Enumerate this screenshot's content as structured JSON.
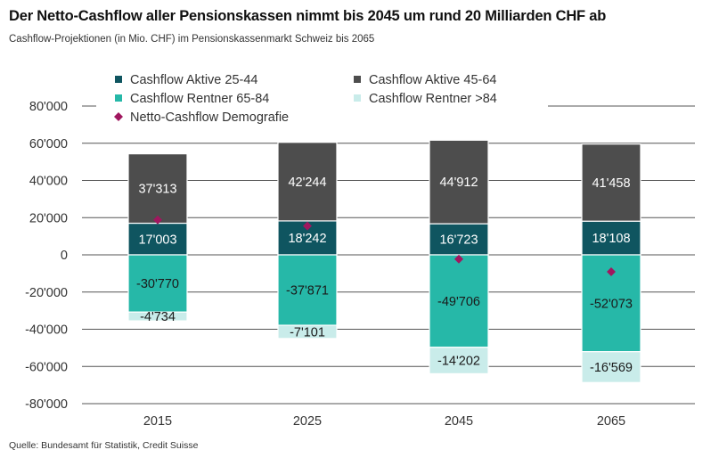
{
  "title": "Der Netto-Cashflow aller Pensionskassen nimmt bis 2045 um rund 20 Milliarden CHF ab",
  "subtitle": "Cashflow-Projektionen (in Mio. CHF) im Pensionskassenmarkt Schweiz bis 2065",
  "source": "Quelle: Bundesamt für Statistik, Credit Suisse",
  "chart_data": {
    "type": "bar",
    "stacked": true,
    "categories": [
      "2015",
      "2025",
      "2045",
      "2065"
    ],
    "ylim": [
      -80000,
      80000
    ],
    "yticks": [
      80000,
      60000,
      40000,
      20000,
      0,
      -20000,
      -40000,
      -60000,
      -80000
    ],
    "ytick_labels": [
      "80'000",
      "60'000",
      "40'000",
      "20'000",
      "0",
      "-20'000",
      "-40'000",
      "-60'000",
      "-80'000"
    ],
    "grid": true,
    "legend_position": "top-left",
    "series": [
      {
        "name": "Cashflow Aktive 25-44",
        "color": "#0f5560",
        "text_color": "#ffffff",
        "values": [
          17003,
          18242,
          16723,
          18108
        ],
        "labels": [
          "17'003",
          "18'242",
          "16'723",
          "18'108"
        ]
      },
      {
        "name": "Cashflow Aktive 45-64",
        "color": "#4d4d4d",
        "text_color": "#ffffff",
        "values": [
          37313,
          42244,
          44912,
          41458
        ],
        "labels": [
          "37'313",
          "42'244",
          "44'912",
          "41'458"
        ]
      },
      {
        "name": "Cashflow Rentner 65-84",
        "color": "#26b8a8",
        "text_color": "#1a1a1a",
        "values": [
          -30770,
          -37871,
          -49706,
          -52073
        ],
        "labels": [
          "-30'770",
          "-37'871",
          "-49'706",
          "-52'073"
        ]
      },
      {
        "name": "Cashflow Rentner >84",
        "color": "#c9ecea",
        "text_color": "#1a1a1a",
        "values": [
          -4734,
          -7101,
          -14202,
          -16569
        ],
        "labels": [
          "-4'734",
          "-7'101",
          "-14'202",
          "-16'569"
        ]
      }
    ],
    "line_series": {
      "name": "Netto-Cashflow Demografie",
      "marker": "diamond",
      "color": "#a0175f",
      "values": [
        18812,
        15514,
        -2273,
        -9076
      ]
    }
  }
}
